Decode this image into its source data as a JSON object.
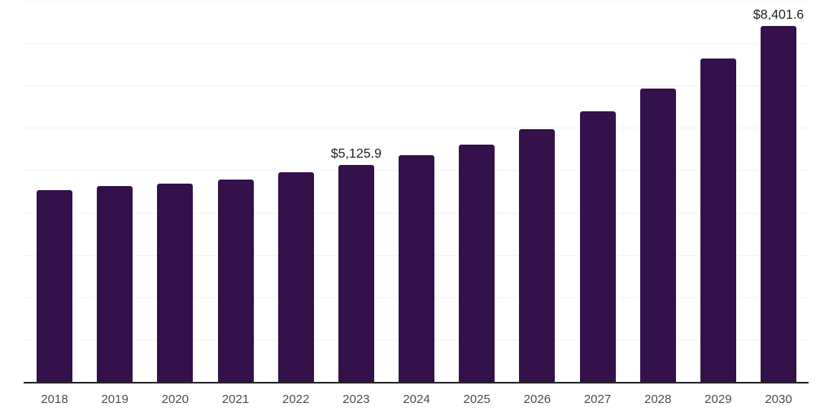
{
  "chart_data": {
    "type": "bar",
    "title": "",
    "xlabel": "",
    "ylabel": "",
    "categories": [
      "2018",
      "2019",
      "2020",
      "2021",
      "2022",
      "2023",
      "2024",
      "2025",
      "2026",
      "2027",
      "2028",
      "2029",
      "2030"
    ],
    "values": [
      4530,
      4630,
      4675,
      4780,
      4945,
      5125.9,
      5355,
      5610,
      5960,
      6385,
      6925,
      7630,
      8401.6
    ],
    "data_labels": [
      {
        "category": "2023",
        "text": "$5,125.9"
      },
      {
        "category": "2030",
        "text": "$8,401.6"
      }
    ],
    "ylim": [
      0,
      9000
    ],
    "gridline_interval": 1000,
    "grid": true,
    "legend": "none",
    "colors": {
      "bar": "#34114A",
      "gridline": "#f4f4f4",
      "axis_line": "#262626",
      "x_axis_label_text": "#4d4d4d",
      "data_label_text": "#212121",
      "background": "#ffffff"
    }
  }
}
